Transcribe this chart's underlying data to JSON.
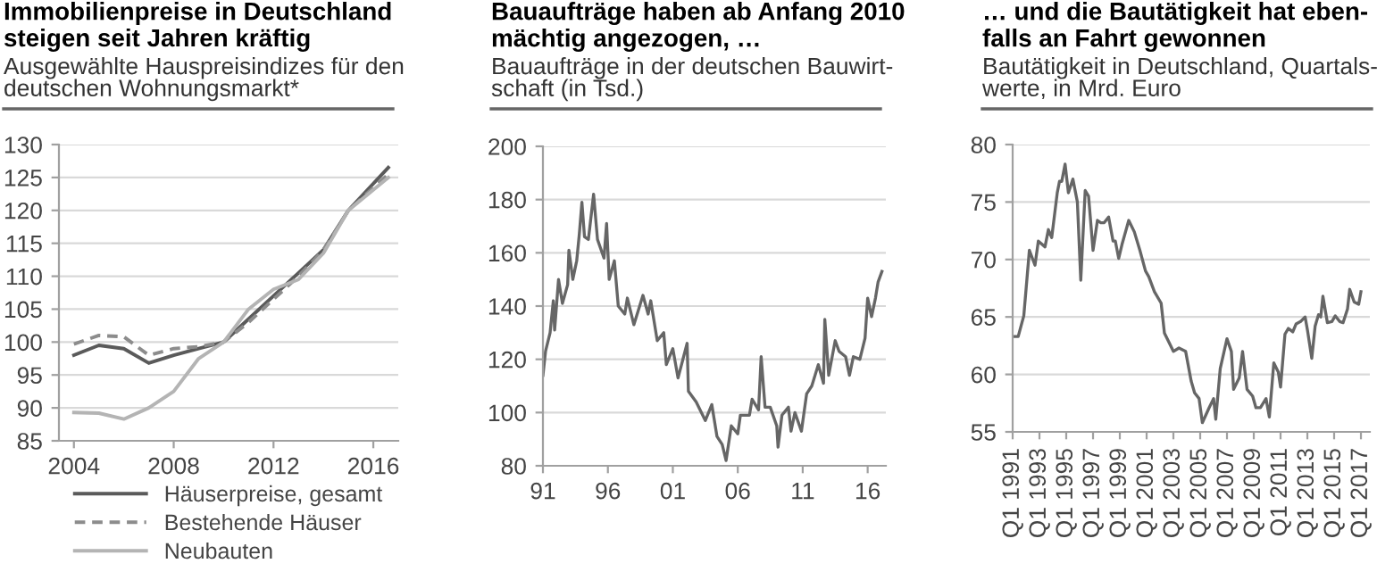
{
  "chart_data": [
    {
      "type": "line",
      "title": "Immobilienpreise in Deutschland\nsteigen seit Jahren kräftig",
      "subtitle": "Ausgewählte Hauspreisindizes für den\ndeutschen Wohnungsmarkt*",
      "xlim": [
        2003.4,
        2017.0
      ],
      "xticks": [
        2004,
        2008,
        2012,
        2016
      ],
      "ylim": [
        85,
        130
      ],
      "yticks": [
        85,
        90,
        95,
        100,
        105,
        110,
        115,
        120,
        125,
        130
      ],
      "grid": "y",
      "legend": "bottom",
      "marker": "none",
      "x": [
        2004,
        2005,
        2006,
        2007,
        2008,
        2009,
        2010,
        2011,
        2012,
        2013,
        2014,
        2015,
        2016.6
      ],
      "series": [
        {
          "name": "Häuserpreise, gesamt",
          "color": "#5a5a5a",
          "line_style": "solid",
          "values": [
            98,
            99.5,
            99,
            96.8,
            98,
            99,
            100,
            103.5,
            107,
            110.5,
            114,
            120,
            126.5
          ]
        },
        {
          "name": "Bestehende Häuser",
          "color": "#8c8c8c",
          "line_style": "dashed",
          "values": [
            99.7,
            101,
            100.8,
            98,
            99,
            99.3,
            100,
            103,
            106.5,
            110,
            114,
            120,
            125.5
          ]
        },
        {
          "name": "Neubauten",
          "color": "#b4b4b4",
          "line_style": "solid",
          "values": [
            89.3,
            89.2,
            88.3,
            90,
            92.5,
            97.5,
            100,
            105,
            108,
            109.5,
            113.5,
            120,
            125
          ]
        }
      ]
    },
    {
      "type": "line",
      "title": "Bauaufträge haben ab Anfang 2010\nmächtig angezogen, …",
      "subtitle": "Bauaufträge in der deutschen Bauwirt-\nschaft (in Tsd.)",
      "xlim": [
        1991,
        2017.4
      ],
      "xticks": [
        {
          "value": 1991,
          "label": "91"
        },
        {
          "value": 1996,
          "label": "96"
        },
        {
          "value": 2001,
          "label": "01"
        },
        {
          "value": 2006,
          "label": "06"
        },
        {
          "value": 2011,
          "label": "11"
        },
        {
          "value": 2016,
          "label": "16"
        }
      ],
      "ylim": [
        80,
        200
      ],
      "yticks": [
        80,
        100,
        120,
        140,
        160,
        180,
        200
      ],
      "grid": "y",
      "marker": "none",
      "series": [
        {
          "color": "#666666",
          "x": [
            1991.0,
            1991.2,
            1991.55,
            1991.8,
            1991.9,
            1992.2,
            1992.5,
            1992.9,
            1993.0,
            1993.3,
            1993.6,
            1993.8,
            1994.0,
            1994.2,
            1994.5,
            1994.9,
            1995.2,
            1995.7,
            1995.9,
            1996.1,
            1996.5,
            1996.8,
            1997.3,
            1997.5,
            1998.0,
            1998.7,
            1999.1,
            1999.3,
            1999.8,
            2000.3,
            2000.5,
            2001.0,
            2001.4,
            2002.1,
            2002.2,
            2002.8,
            2003.5,
            2004.0,
            2004.4,
            2004.8,
            2005.1,
            2005.5,
            2006.0,
            2006.2,
            2006.9,
            2007.1,
            2007.6,
            2007.8,
            2008.1,
            2008.5,
            2009.0,
            2009.1,
            2009.4,
            2009.9,
            2010.1,
            2010.4,
            2010.9,
            2011.3,
            2011.7,
            2012.2,
            2012.6,
            2012.7,
            2013.0,
            2013.5,
            2013.8,
            2014.3,
            2014.6,
            2014.9,
            2015.4,
            2015.8,
            2016.0,
            2016.3,
            2016.6,
            2016.8,
            2017.1
          ],
          "values": [
            114,
            123,
            130,
            142,
            131,
            150,
            141,
            148,
            161,
            150,
            157,
            167,
            179,
            166,
            165,
            182,
            165,
            158,
            171,
            150,
            157,
            140,
            137,
            143,
            133,
            144,
            137,
            142,
            127,
            130,
            118,
            124,
            113,
            126,
            108,
            104,
            97,
            103,
            91,
            88,
            82,
            95,
            92,
            99,
            99,
            105,
            101,
            121,
            102,
            102,
            95,
            87,
            99,
            102,
            93,
            100,
            93,
            107,
            110,
            118,
            111,
            135,
            114,
            127,
            123,
            121,
            114,
            121,
            120,
            128,
            143,
            136,
            143,
            149,
            153
          ]
        }
      ]
    },
    {
      "type": "line",
      "title": "… und die Bautätigkeit hat eben-\nfalls an Fahrt gewonnen",
      "subtitle": "Bautätigkeit in Deutschland, Quartals-\nwerte, in Mrd. Euro",
      "xlim": [
        "1991-01",
        "2017-09"
      ],
      "xticks": [
        {
          "value": "1991-01",
          "label": "Q1 1991"
        },
        {
          "value": "1993-01",
          "label": "Q1 1993"
        },
        {
          "value": "1995-01",
          "label": "Q1 1995"
        },
        {
          "value": "1997-01",
          "label": "Q1 1997"
        },
        {
          "value": "1999-01",
          "label": "Q1 1999"
        },
        {
          "value": "2001-01",
          "label": "Q1 2001"
        },
        {
          "value": "2003-01",
          "label": "Q1 2003"
        },
        {
          "value": "2005-01",
          "label": "Q1 2005"
        },
        {
          "value": "2007-01",
          "label": "Q1 2007"
        },
        {
          "value": "2009-01",
          "label": "Q1 2009"
        },
        {
          "value": "2011-01",
          "label": "Q1 2011"
        },
        {
          "value": "2013-01",
          "label": "Q1 2013"
        },
        {
          "value": "2015-01",
          "label": "Q1 2015"
        },
        {
          "value": "2017-01",
          "label": "Q1 2017"
        }
      ],
      "ylim": [
        55,
        80
      ],
      "yticks": [
        55,
        60,
        65,
        70,
        75,
        80
      ],
      "grid": "y",
      "marker": "none",
      "series": [
        {
          "color": "#666666",
          "x": [
            "1991-01",
            "1991-06",
            "1991-11",
            "1992-04",
            "1992-09",
            "1992-12",
            "1993-06",
            "1993-09",
            "1993-12",
            "1994-05",
            "1994-07",
            "1994-09",
            "1994-12",
            "1995-03",
            "1995-07",
            "1995-11",
            "1996-02",
            "1996-06",
            "1996-09",
            "1997-01",
            "1997-05",
            "1997-08",
            "1997-11",
            "1998-03",
            "1998-07",
            "1998-09",
            "1998-12",
            "1999-03",
            "1999-09",
            "2000-02",
            "2000-07",
            "2000-12",
            "2001-03",
            "2001-08",
            "2002-02",
            "2002-05",
            "2002-09",
            "2003-01",
            "2003-06",
            "2003-12",
            "2004-05",
            "2004-08",
            "2004-12",
            "2005-03",
            "2005-09",
            "2006-01",
            "2006-03",
            "2006-07",
            "2007-01",
            "2007-05",
            "2007-07",
            "2007-12",
            "2008-03",
            "2008-07",
            "2008-12",
            "2009-03",
            "2009-07",
            "2009-12",
            "2010-03",
            "2010-07",
            "2010-11",
            "2011-01",
            "2011-05",
            "2011-08",
            "2011-12",
            "2012-03",
            "2012-07",
            "2012-11",
            "2013-01",
            "2013-05",
            "2013-08",
            "2013-11",
            "2014-01",
            "2014-03",
            "2014-07",
            "2014-11",
            "2015-02",
            "2015-06",
            "2015-09",
            "2016-01",
            "2016-03",
            "2016-07",
            "2016-11",
            "2017-01"
          ],
          "values": [
            63.3,
            63.3,
            65.1,
            70.8,
            69.5,
            71.6,
            71.1,
            72.6,
            71.9,
            75.8,
            76.8,
            76.8,
            78.3,
            75.8,
            77.0,
            75.0,
            68.2,
            76.0,
            75.5,
            70.8,
            73.4,
            73.2,
            73.2,
            73.7,
            71.6,
            71.6,
            70.1,
            71.3,
            73.4,
            72.4,
            70.8,
            69.0,
            68.5,
            67.2,
            66.2,
            63.6,
            62.8,
            62.0,
            62.3,
            62.0,
            59.4,
            58.4,
            57.9,
            55.8,
            57.1,
            57.9,
            56.1,
            60.5,
            63.1,
            62.0,
            58.7,
            59.7,
            62.0,
            58.7,
            58.1,
            57.1,
            57.1,
            57.9,
            56.3,
            61.0,
            60.2,
            58.9,
            63.5,
            64.0,
            63.7,
            64.4,
            64.6,
            65.0,
            63.9,
            61.4,
            64.2,
            65.2,
            65.0,
            66.8,
            64.5,
            64.6,
            65.1,
            64.6,
            64.5,
            65.7,
            67.4,
            66.3,
            66.1,
            67.2
          ]
        }
      ]
    }
  ]
}
